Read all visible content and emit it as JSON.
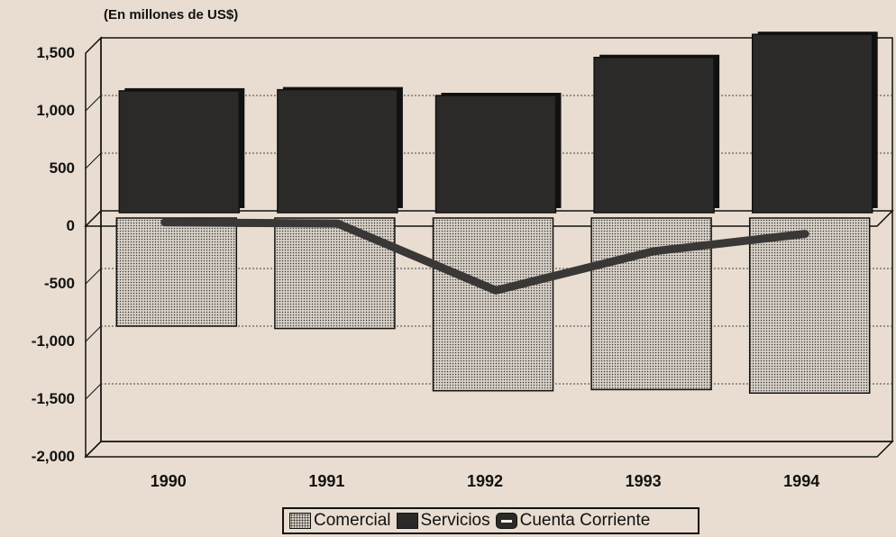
{
  "chart_data": {
    "type": "bar",
    "unit_label": "(En millones de US$)",
    "categories": [
      "1990",
      "1991",
      "1992",
      "1993",
      "1994"
    ],
    "series": [
      {
        "name": "Comercial",
        "kind": "bar",
        "values": [
          -1000,
          -1020,
          -1560,
          -1550,
          -1580
        ]
      },
      {
        "name": "Servicios",
        "kind": "bar",
        "values": [
          1040,
          1050,
          1000,
          1330,
          1530
        ]
      },
      {
        "name": "Cuenta Corriente",
        "kind": "line",
        "values": [
          -100,
          -110,
          -690,
          -350,
          -200
        ]
      }
    ],
    "ylim": [
      -2000,
      1500
    ],
    "yticks": [
      -2000,
      -1500,
      -1000,
      -500,
      0,
      500,
      1000,
      1500
    ],
    "ytick_labels": [
      "-2,000",
      "-1,500",
      "-1,000",
      "-500",
      "0",
      "500",
      "1,000",
      "1,500"
    ],
    "grid": true,
    "legend_position": "bottom",
    "colors": {
      "comercial": "#d9d1c7",
      "servicios": "#2c2a28",
      "line": "#3a3836",
      "background": "#e8ddd0"
    }
  }
}
